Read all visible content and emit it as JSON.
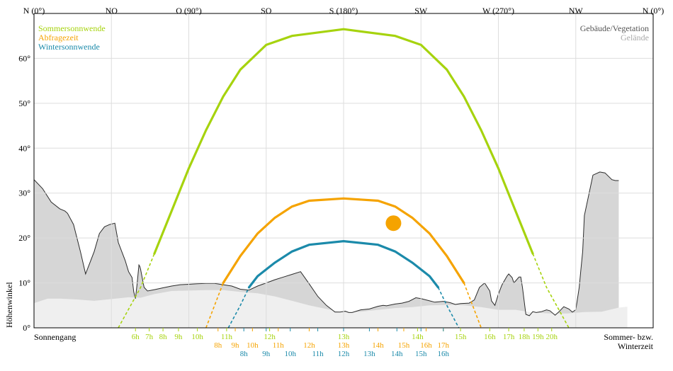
{
  "chart_data": {
    "type": "line",
    "x_axis": {
      "unit": "azimuth_deg",
      "range": [
        0,
        360
      ],
      "labels": [
        {
          "az": 0,
          "text": "N (0°)"
        },
        {
          "az": 45,
          "text": "NO"
        },
        {
          "az": 90,
          "text": "O (90°)"
        },
        {
          "az": 135,
          "text": "SO"
        },
        {
          "az": 180,
          "text": "S (180°)"
        },
        {
          "az": 225,
          "text": "SW"
        },
        {
          "az": 270,
          "text": "W (270°)"
        },
        {
          "az": 315,
          "text": "NW"
        },
        {
          "az": 360,
          "text": "N (0°)"
        }
      ]
    },
    "y_axis": {
      "label": "Höhenwinkel",
      "range": [
        0,
        70
      ],
      "ticks": [
        {
          "v": 0,
          "text": "0°"
        },
        {
          "v": 10,
          "text": "10°"
        },
        {
          "v": 20,
          "text": "20°"
        },
        {
          "v": 30,
          "text": "30°"
        },
        {
          "v": 40,
          "text": "40°"
        },
        {
          "v": 50,
          "text": "50°"
        },
        {
          "v": 60,
          "text": "60°"
        }
      ]
    },
    "legend_left": [
      {
        "text": "Sommersonnwende",
        "color": "#a6d30e"
      },
      {
        "text": "Abfragezeit",
        "color": "#f5a300"
      },
      {
        "text": "Wintersonnwende",
        "color": "#1b8aaa"
      }
    ],
    "legend_right": [
      {
        "text": "Gebäude/Vegetation",
        "color": "#555555"
      },
      {
        "text": "Gelände",
        "color": "#aaaaaa"
      }
    ],
    "footer_left": "Sonnengang",
    "footer_right_1": "Sommer- bzw.",
    "footer_right_2": "Winterzeit",
    "series": [
      {
        "name": "Sommersonnwende",
        "color": "#a6d30e",
        "points": [
          [
            49,
            0
          ],
          [
            62,
            9
          ],
          [
            70,
            16.5
          ],
          [
            80,
            26
          ],
          [
            90,
            35.5
          ],
          [
            100,
            44
          ],
          [
            110,
            51.5
          ],
          [
            120,
            57.5
          ],
          [
            135,
            63
          ],
          [
            150,
            65
          ],
          [
            180,
            66.5
          ],
          [
            210,
            65
          ],
          [
            225,
            63
          ],
          [
            240,
            57.5
          ],
          [
            250,
            51.5
          ],
          [
            260,
            44
          ],
          [
            270,
            35.5
          ],
          [
            280,
            26
          ],
          [
            290,
            16.5
          ],
          [
            298,
            9
          ],
          [
            311,
            0
          ]
        ],
        "hours": [
          {
            "text": "6h",
            "az": 59
          },
          {
            "text": "7h",
            "az": 67
          },
          {
            "text": "8h",
            "az": 75
          },
          {
            "text": "9h",
            "az": 84
          },
          {
            "text": "10h",
            "az": 95
          },
          {
            "text": "11h",
            "az": 112
          },
          {
            "text": "12h",
            "az": 137
          },
          {
            "text": "13h",
            "az": 180
          },
          {
            "text": "14h",
            "az": 223
          },
          {
            "text": "15h",
            "az": 248
          },
          {
            "text": "16h",
            "az": 265
          },
          {
            "text": "17h",
            "az": 276
          },
          {
            "text": "18h",
            "az": 285
          },
          {
            "text": "19h",
            "az": 293
          },
          {
            "text": "20h",
            "az": 301
          }
        ]
      },
      {
        "name": "Abfragezeit",
        "color": "#f5a300",
        "points": [
          [
            100,
            0
          ],
          [
            105,
            5
          ],
          [
            110,
            10
          ],
          [
            120,
            16
          ],
          [
            130,
            21
          ],
          [
            140,
            24.5
          ],
          [
            150,
            27
          ],
          [
            160,
            28.3
          ],
          [
            180,
            28.8
          ],
          [
            200,
            28.3
          ],
          [
            210,
            27
          ],
          [
            220,
            24.5
          ],
          [
            230,
            21
          ],
          [
            240,
            16
          ],
          [
            250,
            10
          ],
          [
            255,
            5
          ],
          [
            260,
            0
          ]
        ],
        "sun": {
          "az": 209,
          "alt": 23.3
        },
        "hours": [
          {
            "text": "8h",
            "az": 107
          },
          {
            "text": "9h",
            "az": 117
          },
          {
            "text": "10h",
            "az": 127
          },
          {
            "text": "11h",
            "az": 142
          },
          {
            "text": "12h",
            "az": 160
          },
          {
            "text": "13h",
            "az": 180
          },
          {
            "text": "14h",
            "az": 200
          },
          {
            "text": "15h",
            "az": 215
          },
          {
            "text": "16h",
            "az": 228
          },
          {
            "text": "17h",
            "az": 238
          }
        ]
      },
      {
        "name": "Wintersonnwende",
        "color": "#1b8aaa",
        "points": [
          [
            113,
            0
          ],
          [
            120,
            5
          ],
          [
            125,
            9
          ],
          [
            130,
            11.5
          ],
          [
            140,
            14.5
          ],
          [
            150,
            17
          ],
          [
            160,
            18.5
          ],
          [
            180,
            19.3
          ],
          [
            200,
            18.5
          ],
          [
            210,
            17
          ],
          [
            220,
            14.5
          ],
          [
            230,
            11.5
          ],
          [
            235,
            9
          ],
          [
            240,
            5
          ],
          [
            247,
            0
          ]
        ],
        "hours": [
          {
            "text": "8h",
            "az": 122
          },
          {
            "text": "9h",
            "az": 135
          },
          {
            "text": "10h",
            "az": 149
          },
          {
            "text": "11h",
            "az": 165
          },
          {
            "text": "12h",
            "az": 180
          },
          {
            "text": "13h",
            "az": 195
          },
          {
            "text": "14h",
            "az": 211
          },
          {
            "text": "15h",
            "az": 225
          },
          {
            "text": "16h",
            "az": 238
          }
        ]
      }
    ],
    "horizon_buildings": [
      [
        0,
        33
      ],
      [
        5,
        31
      ],
      [
        10,
        28
      ],
      [
        15,
        26.5
      ],
      [
        18,
        26
      ],
      [
        19.5,
        25.5
      ],
      [
        23,
        23
      ],
      [
        27,
        17
      ],
      [
        30,
        12
      ],
      [
        32,
        14
      ],
      [
        35,
        17
      ],
      [
        38,
        21
      ],
      [
        41,
        22.5
      ],
      [
        44,
        23
      ],
      [
        47,
        23.3
      ],
      [
        49,
        19
      ],
      [
        53,
        15
      ],
      [
        55,
        12.5
      ],
      [
        57,
        11.2
      ],
      [
        58,
        8
      ],
      [
        59,
        6.5
      ],
      [
        60,
        10
      ],
      [
        61,
        14
      ],
      [
        61.5,
        13.7
      ],
      [
        62,
        13
      ],
      [
        63,
        11
      ],
      [
        64,
        9
      ],
      [
        66,
        8.2
      ],
      [
        70,
        8.5
      ],
      [
        75,
        8.9
      ],
      [
        80,
        9.3
      ],
      [
        85,
        9.6
      ],
      [
        90,
        9.7
      ],
      [
        95,
        9.8
      ],
      [
        100,
        9.9
      ],
      [
        105,
        9.9
      ],
      [
        110,
        9.6
      ],
      [
        115,
        9.3
      ],
      [
        120,
        8.6
      ],
      [
        125,
        8.4
      ],
      [
        130,
        9.3
      ],
      [
        135,
        10
      ],
      [
        140,
        10.7
      ],
      [
        145,
        11.3
      ],
      [
        150,
        11.9
      ],
      [
        155,
        12.5
      ],
      [
        160,
        9.8
      ],
      [
        165,
        7
      ],
      [
        170,
        5
      ],
      [
        175,
        3.5
      ],
      [
        178,
        3.5
      ],
      [
        181,
        3.7
      ],
      [
        183,
        3.4
      ],
      [
        185,
        3.4
      ],
      [
        190,
        4
      ],
      [
        195,
        4.2
      ],
      [
        200,
        4.8
      ],
      [
        203,
        5
      ],
      [
        205,
        4.9
      ],
      [
        210,
        5.3
      ],
      [
        214,
        5.5
      ],
      [
        218,
        5.9
      ],
      [
        222,
        6.7
      ],
      [
        225,
        6.5
      ],
      [
        230,
        6
      ],
      [
        233,
        5.7
      ],
      [
        238,
        5.9
      ],
      [
        242,
        5.6
      ],
      [
        245,
        5.2
      ],
      [
        248,
        5.4
      ],
      [
        253,
        5.5
      ],
      [
        256,
        6.2
      ],
      [
        259,
        9
      ],
      [
        262,
        10
      ],
      [
        265,
        8.2
      ],
      [
        266,
        6
      ],
      [
        268,
        5
      ],
      [
        270,
        7.5
      ],
      [
        272,
        9.5
      ],
      [
        275,
        11.5
      ],
      [
        276,
        12
      ],
      [
        278,
        11.2
      ],
      [
        279,
        10
      ],
      [
        282,
        11.3
      ],
      [
        283,
        11.3
      ],
      [
        284,
        9
      ],
      [
        286,
        3
      ],
      [
        288,
        2.7
      ],
      [
        290,
        3.6
      ],
      [
        292,
        3.4
      ],
      [
        295,
        3.6
      ],
      [
        298,
        4
      ],
      [
        300,
        3.8
      ],
      [
        303,
        2.8
      ],
      [
        305,
        3.5
      ],
      [
        308,
        4.7
      ],
      [
        311,
        4.2
      ],
      [
        313,
        3.5
      ],
      [
        315,
        4
      ],
      [
        317,
        9
      ],
      [
        318,
        13
      ],
      [
        319,
        17
      ],
      [
        320,
        25
      ],
      [
        325,
        34
      ],
      [
        329,
        34.7
      ],
      [
        332,
        34.5
      ],
      [
        336,
        33
      ],
      [
        338,
        32.8
      ],
      [
        340,
        32.8
      ]
    ],
    "horizon_terrain": [
      [
        0,
        5.5
      ],
      [
        8,
        6.5
      ],
      [
        15,
        6.5
      ],
      [
        25,
        6.3
      ],
      [
        35,
        6
      ],
      [
        45,
        6.4
      ],
      [
        55,
        6.8
      ],
      [
        62,
        6.7
      ],
      [
        70,
        7.5
      ],
      [
        80,
        8.2
      ],
      [
        90,
        8.3
      ],
      [
        100,
        8.4
      ],
      [
        110,
        8.4
      ],
      [
        120,
        8
      ],
      [
        130,
        7.7
      ],
      [
        140,
        7
      ],
      [
        150,
        6
      ],
      [
        160,
        5
      ],
      [
        170,
        4.2
      ],
      [
        180,
        3.4
      ],
      [
        190,
        3.6
      ],
      [
        200,
        4
      ],
      [
        210,
        4.4
      ],
      [
        220,
        4.6
      ],
      [
        230,
        5
      ],
      [
        240,
        5.1
      ],
      [
        250,
        5
      ],
      [
        260,
        4.6
      ],
      [
        270,
        4
      ],
      [
        280,
        4
      ],
      [
        290,
        3.4
      ],
      [
        300,
        3.2
      ],
      [
        310,
        3.2
      ],
      [
        320,
        3.5
      ],
      [
        330,
        3.6
      ],
      [
        340,
        4.5
      ],
      [
        345,
        4.7
      ]
    ]
  }
}
